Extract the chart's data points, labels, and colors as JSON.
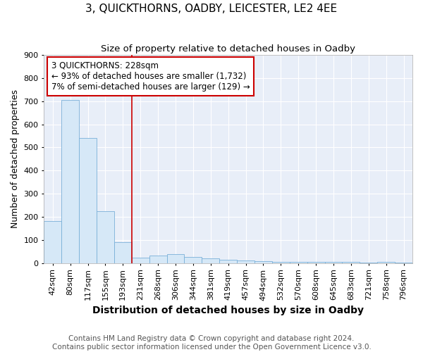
{
  "title": "3, QUICKTHORNS, OADBY, LEICESTER, LE2 4EE",
  "subtitle": "Size of property relative to detached houses in Oadby",
  "xlabel": "Distribution of detached houses by size in Oadby",
  "ylabel": "Number of detached properties",
  "footer_line1": "Contains HM Land Registry data © Crown copyright and database right 2024.",
  "footer_line2": "Contains public sector information licensed under the Open Government Licence v3.0.",
  "x_labels": [
    "42sqm",
    "80sqm",
    "117sqm",
    "155sqm",
    "193sqm",
    "231sqm",
    "268sqm",
    "306sqm",
    "344sqm",
    "381sqm",
    "419sqm",
    "457sqm",
    "494sqm",
    "532sqm",
    "570sqm",
    "608sqm",
    "645sqm",
    "683sqm",
    "721sqm",
    "758sqm",
    "796sqm"
  ],
  "bar_heights": [
    183,
    706,
    540,
    224,
    90,
    25,
    32,
    40,
    28,
    20,
    15,
    12,
    8,
    6,
    6,
    5,
    5,
    4,
    3,
    4,
    3
  ],
  "bar_color": "#d6e8f7",
  "bar_edge_color": "#7ab0d8",
  "vline_x_index": 5,
  "vline_color": "#cc0000",
  "annotation_text": "3 QUICKTHORNS: 228sqm\n← 93% of detached houses are smaller (1,732)\n7% of semi-detached houses are larger (129) →",
  "annotation_box_color": "#ffffff",
  "annotation_box_edge": "#cc0000",
  "ylim": [
    0,
    900
  ],
  "yticks": [
    0,
    100,
    200,
    300,
    400,
    500,
    600,
    700,
    800,
    900
  ],
  "fig_bg_color": "#ffffff",
  "plot_bg_color": "#e8eef8",
  "title_fontsize": 11,
  "subtitle_fontsize": 9.5,
  "xlabel_fontsize": 10,
  "ylabel_fontsize": 9,
  "tick_fontsize": 8,
  "annotation_fontsize": 8.5,
  "footer_fontsize": 7.5,
  "grid_color": "#ffffff",
  "grid_linewidth": 0.8
}
